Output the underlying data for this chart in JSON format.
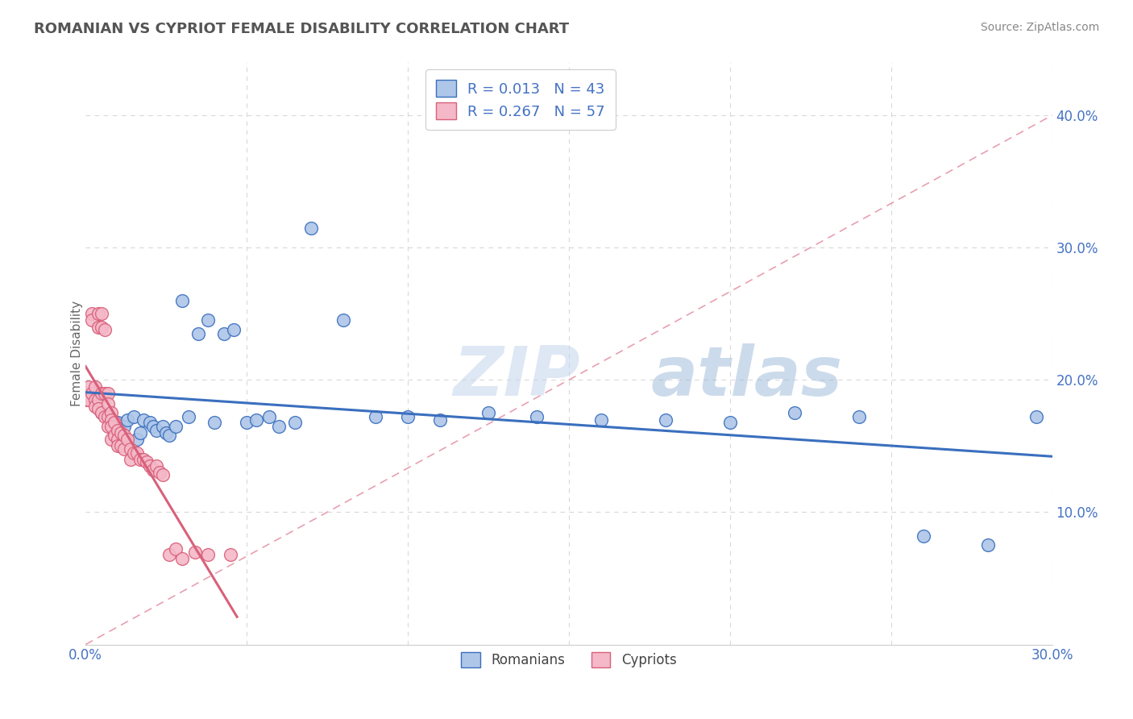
{
  "title": "ROMANIAN VS CYPRIOT FEMALE DISABILITY CORRELATION CHART",
  "source": "Source: ZipAtlas.com",
  "ylabel": "Female Disability",
  "xlim": [
    0.0,
    0.3
  ],
  "ylim": [
    0.0,
    0.44
  ],
  "xticks": [
    0.0,
    0.05,
    0.1,
    0.15,
    0.2,
    0.25,
    0.3
  ],
  "yticks": [
    0.1,
    0.2,
    0.3,
    0.4
  ],
  "ytick_labels": [
    "10.0%",
    "20.0%",
    "30.0%",
    "40.0%"
  ],
  "xtick_labels": [
    "0.0%",
    "",
    "",
    "",
    "",
    "",
    "30.0%"
  ],
  "legend_r1": "R = 0.013",
  "legend_n1": "N = 43",
  "legend_r2": "R = 0.267",
  "legend_n2": "N = 57",
  "color_romanian": "#aec6e8",
  "color_cypriot": "#f4b8c8",
  "color_romanian_line": "#3a6fbe",
  "color_cypriot_line": "#d9607a",
  "color_diag": "#e8a0b0",
  "watermark_zip": "ZIP",
  "watermark_atlas": "atlas",
  "romanian_x": [
    0.005,
    0.007,
    0.01,
    0.012,
    0.013,
    0.015,
    0.016,
    0.017,
    0.018,
    0.02,
    0.021,
    0.022,
    0.024,
    0.025,
    0.026,
    0.028,
    0.03,
    0.032,
    0.035,
    0.038,
    0.04,
    0.043,
    0.046,
    0.05,
    0.053,
    0.057,
    0.06,
    0.065,
    0.07,
    0.08,
    0.09,
    0.1,
    0.11,
    0.125,
    0.14,
    0.16,
    0.18,
    0.2,
    0.22,
    0.24,
    0.26,
    0.28,
    0.295
  ],
  "romanian_y": [
    0.175,
    0.172,
    0.168,
    0.165,
    0.17,
    0.172,
    0.155,
    0.16,
    0.17,
    0.168,
    0.165,
    0.162,
    0.165,
    0.16,
    0.158,
    0.165,
    0.26,
    0.172,
    0.235,
    0.245,
    0.168,
    0.235,
    0.238,
    0.168,
    0.17,
    0.172,
    0.165,
    0.168,
    0.315,
    0.245,
    0.172,
    0.172,
    0.17,
    0.175,
    0.172,
    0.17,
    0.17,
    0.168,
    0.175,
    0.172,
    0.082,
    0.075,
    0.172
  ],
  "cypriot_x": [
    0.0,
    0.0,
    0.001,
    0.001,
    0.002,
    0.002,
    0.002,
    0.003,
    0.003,
    0.003,
    0.004,
    0.004,
    0.004,
    0.004,
    0.005,
    0.005,
    0.005,
    0.005,
    0.006,
    0.006,
    0.006,
    0.007,
    0.007,
    0.007,
    0.007,
    0.008,
    0.008,
    0.008,
    0.008,
    0.009,
    0.009,
    0.01,
    0.01,
    0.01,
    0.011,
    0.011,
    0.012,
    0.012,
    0.013,
    0.014,
    0.014,
    0.015,
    0.016,
    0.017,
    0.018,
    0.019,
    0.02,
    0.021,
    0.022,
    0.023,
    0.024,
    0.026,
    0.028,
    0.03,
    0.034,
    0.038,
    0.045
  ],
  "cypriot_y": [
    0.19,
    0.185,
    0.195,
    0.185,
    0.25,
    0.245,
    0.19,
    0.195,
    0.185,
    0.18,
    0.25,
    0.24,
    0.185,
    0.178,
    0.25,
    0.24,
    0.19,
    0.175,
    0.238,
    0.19,
    0.172,
    0.19,
    0.182,
    0.172,
    0.165,
    0.175,
    0.17,
    0.165,
    0.155,
    0.168,
    0.158,
    0.162,
    0.155,
    0.15,
    0.16,
    0.15,
    0.158,
    0.148,
    0.155,
    0.148,
    0.14,
    0.145,
    0.145,
    0.14,
    0.14,
    0.138,
    0.135,
    0.132,
    0.135,
    0.13,
    0.128,
    0.068,
    0.072,
    0.065,
    0.07,
    0.068,
    0.068
  ]
}
